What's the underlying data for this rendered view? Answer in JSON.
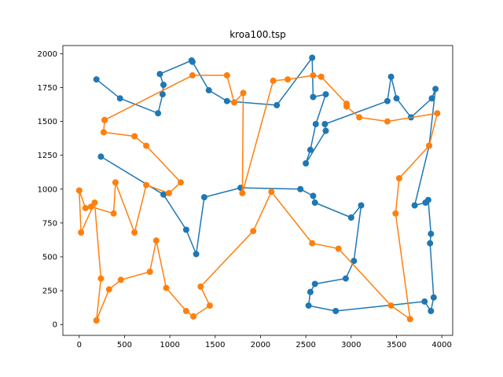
{
  "chart_data": {
    "type": "line",
    "title": "kroa100.tsp",
    "xlabel": "",
    "ylabel": "",
    "xlim": [
      -180,
      4120
    ],
    "ylim": [
      -80,
      2060
    ],
    "x_ticks": [
      0,
      500,
      1000,
      1500,
      2000,
      2500,
      3000,
      3500,
      4000
    ],
    "y_ticks": [
      0,
      250,
      500,
      750,
      1000,
      1250,
      1500,
      1750,
      2000
    ],
    "x_tick_labels": [
      "0",
      "500",
      "1000",
      "1500",
      "2000",
      "2500",
      "3000",
      "3500",
      "4000"
    ],
    "y_tick_labels": [
      "0",
      "250",
      "500",
      "750",
      "1000",
      "1250",
      "1500",
      "1750",
      "2000"
    ],
    "grid": false,
    "legend": "none",
    "series": [
      {
        "color": "#1f77b4",
        "marker": "circle",
        "points": [
          [
            190,
            1810
          ],
          [
            450,
            1670
          ],
          [
            870,
            1560
          ],
          [
            920,
            1700
          ],
          [
            930,
            1770
          ],
          [
            890,
            1850
          ],
          [
            1240,
            1950
          ],
          [
            1250,
            1940
          ],
          [
            1430,
            1730
          ],
          [
            1630,
            1650
          ],
          [
            2180,
            1620
          ],
          [
            2570,
            1970
          ],
          [
            2580,
            1680
          ],
          [
            2720,
            1700
          ],
          [
            2610,
            1480
          ],
          [
            2550,
            1290
          ],
          [
            2500,
            1190
          ],
          [
            2720,
            1430
          ],
          [
            2710,
            1480
          ],
          [
            3400,
            1650
          ],
          [
            3440,
            1830
          ],
          [
            3500,
            1670
          ],
          [
            3660,
            1530
          ],
          [
            3890,
            1670
          ],
          [
            3930,
            1740
          ],
          [
            3860,
            1320
          ],
          [
            3700,
            880
          ],
          [
            3820,
            900
          ],
          [
            3850,
            920
          ],
          [
            3880,
            670
          ],
          [
            3870,
            600
          ],
          [
            3910,
            200
          ],
          [
            3880,
            100
          ],
          [
            3810,
            170
          ],
          [
            2830,
            100
          ],
          [
            2530,
            140
          ],
          [
            2550,
            240
          ],
          [
            2600,
            300
          ],
          [
            2940,
            340
          ],
          [
            3030,
            470
          ],
          [
            3110,
            880
          ],
          [
            3000,
            790
          ],
          [
            2600,
            900
          ],
          [
            2580,
            950
          ],
          [
            2440,
            1000
          ],
          [
            1780,
            1010
          ],
          [
            1380,
            940
          ],
          [
            1290,
            520
          ],
          [
            1180,
            700
          ],
          [
            930,
            960
          ],
          [
            240,
            1240
          ]
        ]
      },
      {
        "color": "#ff7f0e",
        "marker": "circle",
        "points": [
          [
            280,
            1510
          ],
          [
            270,
            1420
          ],
          [
            610,
            1390
          ],
          [
            740,
            1320
          ],
          [
            1120,
            1050
          ],
          [
            990,
            970
          ],
          [
            740,
            1030
          ],
          [
            610,
            680
          ],
          [
            400,
            1050
          ],
          [
            380,
            820
          ],
          [
            130,
            870
          ],
          [
            70,
            860
          ],
          [
            0,
            990
          ],
          [
            20,
            680
          ],
          [
            170,
            900
          ],
          [
            240,
            340
          ],
          [
            190,
            30
          ],
          [
            330,
            260
          ],
          [
            460,
            330
          ],
          [
            780,
            390
          ],
          [
            850,
            620
          ],
          [
            960,
            270
          ],
          [
            1180,
            100
          ],
          [
            1260,
            60
          ],
          [
            1440,
            140
          ],
          [
            1340,
            280
          ],
          [
            1920,
            690
          ],
          [
            2120,
            980
          ],
          [
            2570,
            600
          ],
          [
            2860,
            560
          ],
          [
            3440,
            140
          ],
          [
            3650,
            40
          ],
          [
            3490,
            820
          ],
          [
            3530,
            1080
          ],
          [
            3860,
            1320
          ],
          [
            3950,
            1560
          ],
          [
            3400,
            1500
          ],
          [
            3090,
            1530
          ],
          [
            2950,
            1610
          ],
          [
            2950,
            1630
          ],
          [
            2670,
            1830
          ],
          [
            2580,
            1840
          ],
          [
            2300,
            1810
          ],
          [
            2140,
            1800
          ],
          [
            1800,
            970
          ],
          [
            1810,
            1710
          ],
          [
            1710,
            1640
          ],
          [
            1630,
            1840
          ],
          [
            1250,
            1840
          ],
          [
            280,
            1510
          ]
        ]
      }
    ]
  }
}
